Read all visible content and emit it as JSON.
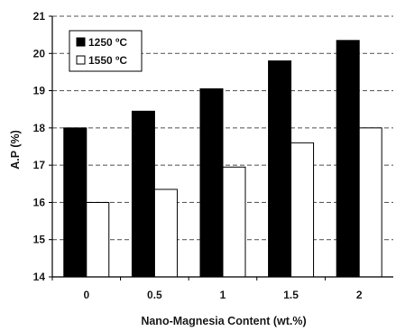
{
  "chart_data": {
    "type": "bar",
    "title": "",
    "xlabel": "Nano-Magnesia Content (wt.%)",
    "ylabel": "A.P (%)",
    "categories": [
      "0",
      "0.5",
      "1",
      "1.5",
      "2"
    ],
    "ylim": [
      14,
      21
    ],
    "yticks": [
      "14",
      "15",
      "16",
      "17",
      "18",
      "19",
      "20",
      "21"
    ],
    "grid": "horizontal dashed",
    "legend_position": "top-left",
    "series": [
      {
        "name": "1250 ºC",
        "color": "#000000",
        "values": [
          18.0,
          18.45,
          19.05,
          19.8,
          20.35
        ]
      },
      {
        "name": "1550 ºC",
        "color": "#ffffff",
        "values": [
          16.0,
          16.35,
          16.95,
          17.6,
          18.0
        ]
      }
    ]
  }
}
